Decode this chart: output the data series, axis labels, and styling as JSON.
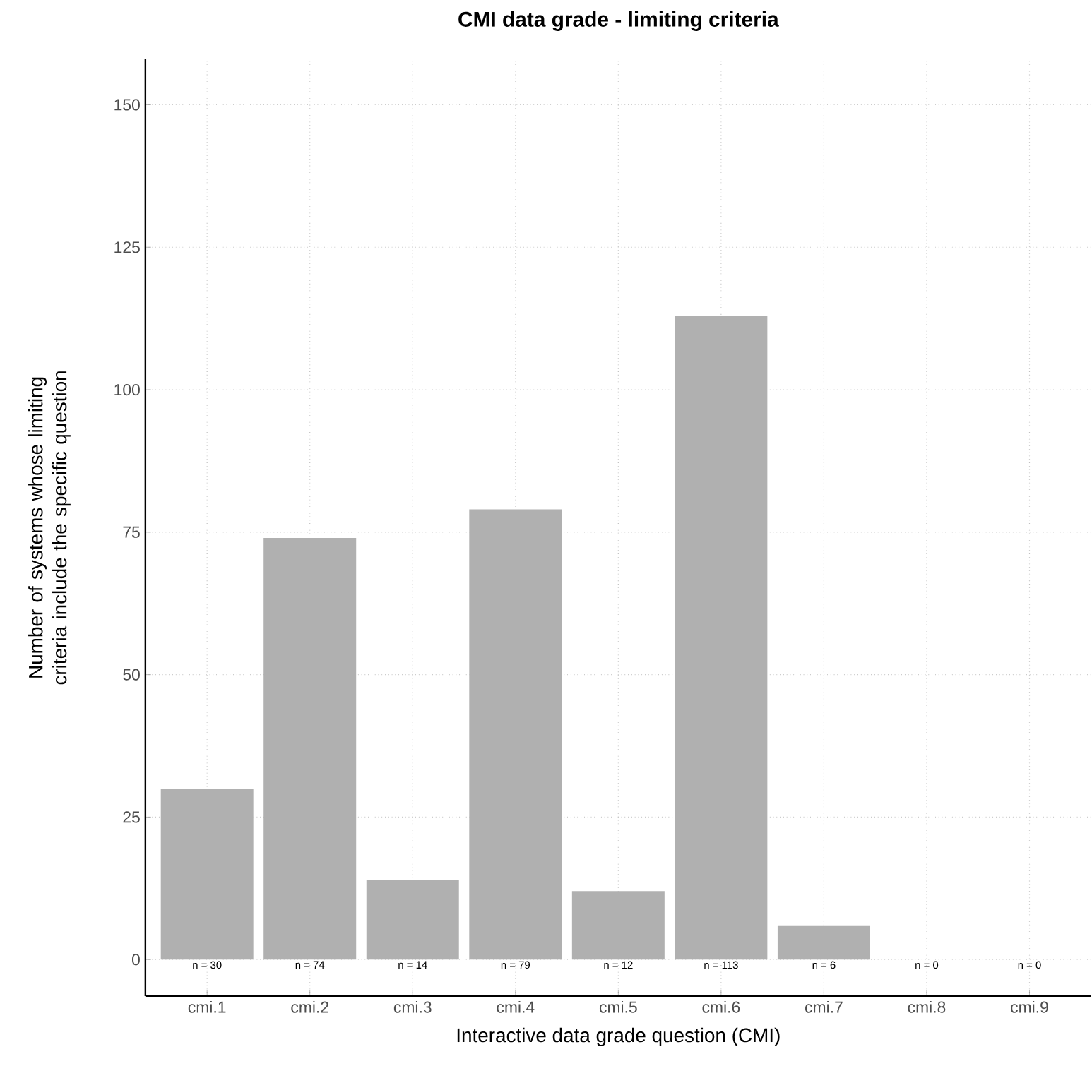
{
  "chart_data": {
    "type": "bar",
    "title": "CMI data grade - limiting criteria",
    "xlabel": "Interactive data grade question (CMI)",
    "ylabel": "Number of systems whose limiting criteria include the specific question",
    "categories": [
      "cmi.1",
      "cmi.2",
      "cmi.3",
      "cmi.4",
      "cmi.5",
      "cmi.6",
      "cmi.7",
      "cmi.8",
      "cmi.9"
    ],
    "values": [
      30,
      74,
      14,
      79,
      12,
      113,
      6,
      0,
      0
    ],
    "value_labels": [
      "n = 30",
      "n = 74",
      "n = 14",
      "n = 79",
      "n = 12",
      "n = 113",
      "n = 6",
      "n = 0",
      "n = 0"
    ],
    "color": "#b0b0b0",
    "ylim": [
      -6.4,
      158
    ],
    "yticks": [
      0,
      25,
      50,
      75,
      100,
      125,
      150
    ],
    "grid": true
  }
}
